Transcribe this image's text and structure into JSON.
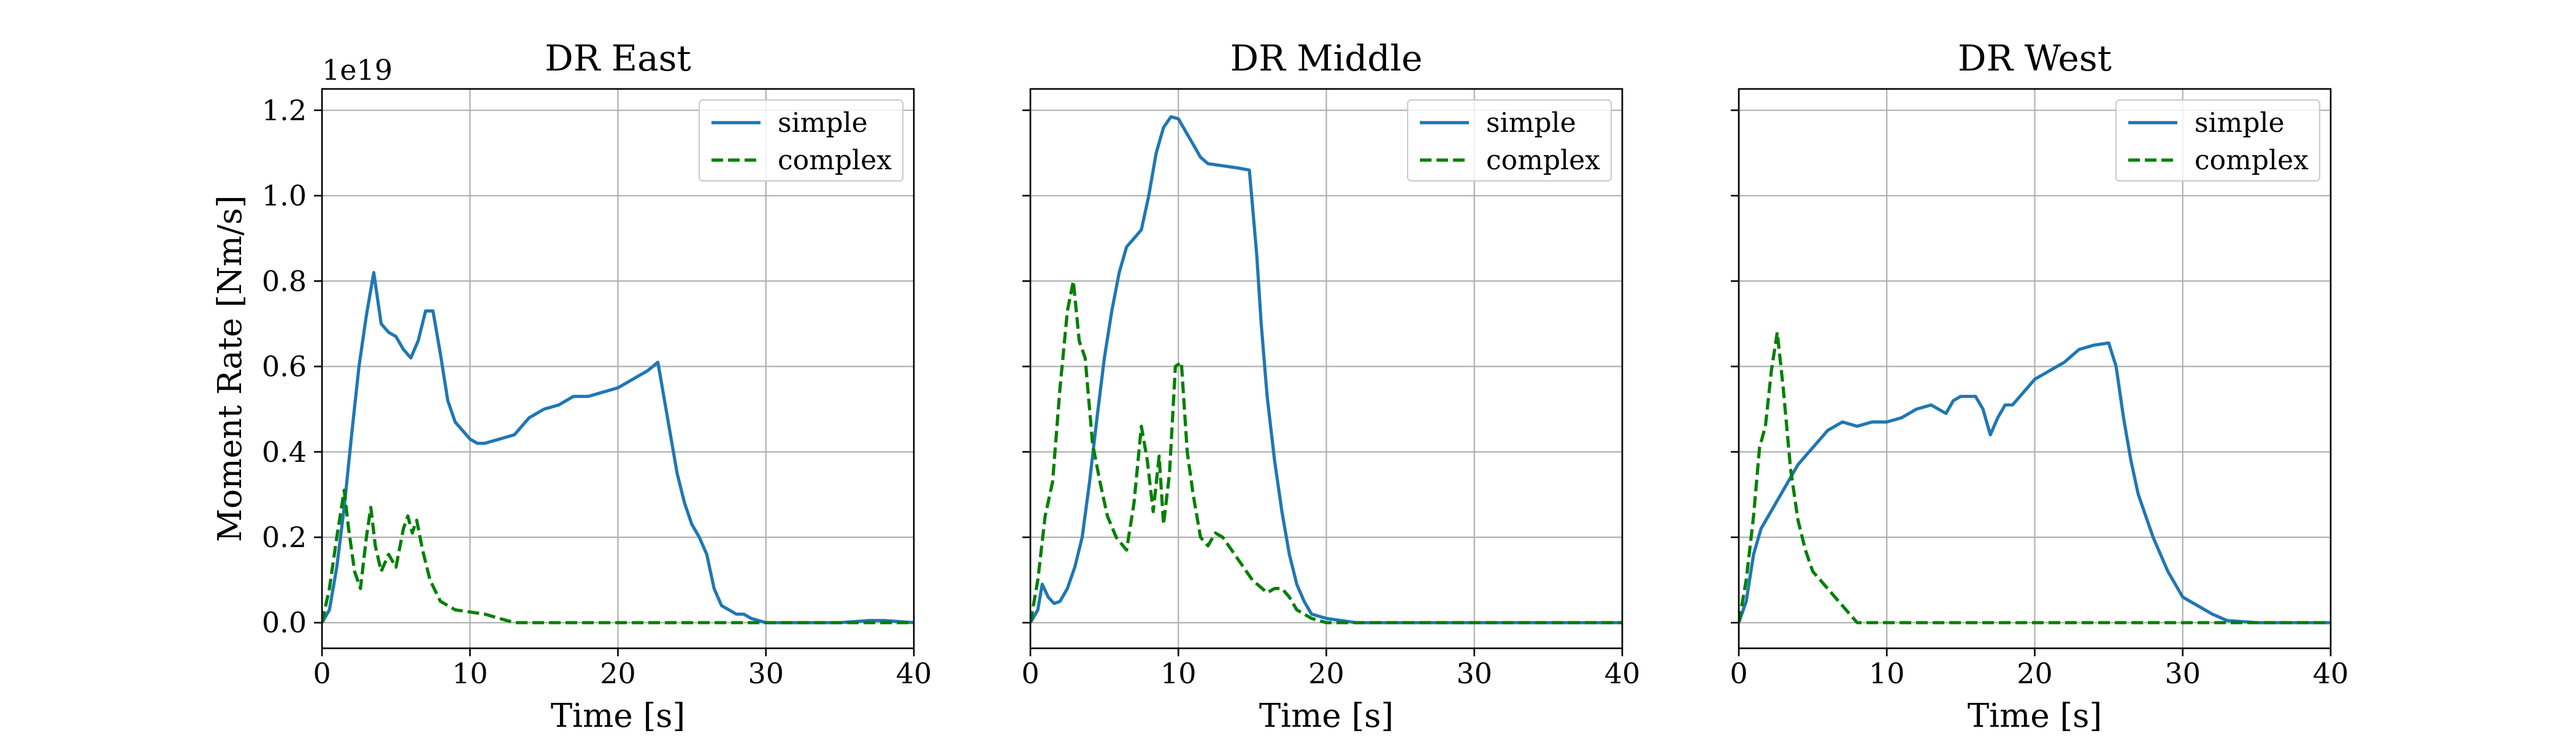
{
  "chart_data": [
    {
      "type": "line",
      "title": "DR East",
      "xlabel": "Time [s]",
      "ylabel": "Moment Rate [Nm/s]",
      "y_offset_label": "1e19",
      "xlim": [
        0,
        40
      ],
      "ylim": [
        -0.06,
        1.25
      ],
      "x_ticks": [
        0,
        10,
        20,
        30,
        40
      ],
      "y_ticks": [
        0.0,
        0.2,
        0.4,
        0.6,
        0.8,
        1.0,
        1.2
      ],
      "grid": true,
      "legend_position": "top-right",
      "series": [
        {
          "name": "simple",
          "color": "#1f77b4",
          "style": "solid",
          "x": [
            0,
            0.5,
            1,
            1.5,
            2,
            2.5,
            3,
            3.5,
            4,
            4.5,
            5,
            5.5,
            6,
            6.5,
            7,
            7.5,
            8,
            8.5,
            9,
            9.5,
            10,
            10.5,
            11,
            12,
            13,
            14,
            15,
            16,
            17,
            18,
            19,
            20,
            21,
            22,
            22.7,
            23,
            23.5,
            24,
            24.5,
            25,
            25.5,
            26,
            26.5,
            27,
            27.5,
            28,
            28.5,
            29,
            30,
            32,
            35,
            37,
            38,
            40
          ],
          "y": [
            0.0,
            0.03,
            0.13,
            0.27,
            0.44,
            0.6,
            0.72,
            0.82,
            0.7,
            0.68,
            0.67,
            0.64,
            0.62,
            0.66,
            0.73,
            0.73,
            0.63,
            0.52,
            0.47,
            0.45,
            0.43,
            0.42,
            0.42,
            0.43,
            0.44,
            0.48,
            0.5,
            0.51,
            0.53,
            0.53,
            0.54,
            0.55,
            0.57,
            0.59,
            0.61,
            0.55,
            0.45,
            0.35,
            0.28,
            0.23,
            0.2,
            0.16,
            0.08,
            0.04,
            0.03,
            0.02,
            0.02,
            0.01,
            0.0,
            0.0,
            0.0,
            0.005,
            0.005,
            0.0
          ]
        },
        {
          "name": "complex",
          "color": "#008000",
          "style": "dashed",
          "x": [
            0,
            0.5,
            1,
            1.5,
            1.8,
            2.2,
            2.6,
            3,
            3.3,
            3.6,
            4,
            4.5,
            5,
            5.5,
            5.8,
            6.1,
            6.4,
            6.8,
            7.3,
            8,
            9,
            10,
            11,
            12,
            13,
            15,
            20,
            25,
            30,
            35,
            40
          ],
          "y": [
            0.0,
            0.08,
            0.2,
            0.31,
            0.22,
            0.12,
            0.08,
            0.2,
            0.27,
            0.18,
            0.12,
            0.16,
            0.13,
            0.22,
            0.25,
            0.21,
            0.24,
            0.17,
            0.1,
            0.05,
            0.03,
            0.025,
            0.02,
            0.01,
            0.0,
            0.0,
            0.0,
            0.0,
            0.0,
            0.0,
            0.0
          ]
        }
      ]
    },
    {
      "type": "line",
      "title": "DR Middle",
      "xlabel": "Time [s]",
      "ylabel": "",
      "xlim": [
        0,
        40
      ],
      "ylim": [
        -0.06,
        1.25
      ],
      "x_ticks": [
        0,
        10,
        20,
        30,
        40
      ],
      "y_ticks": [
        0.0,
        0.2,
        0.4,
        0.6,
        0.8,
        1.0,
        1.2
      ],
      "grid": true,
      "legend_position": "top-right",
      "series": [
        {
          "name": "simple",
          "color": "#1f77b4",
          "style": "solid",
          "x": [
            0,
            0.5,
            0.8,
            1.2,
            1.6,
            2,
            2.5,
            3,
            3.5,
            4,
            4.5,
            5,
            5.5,
            6,
            6.5,
            7,
            7.5,
            8,
            8.5,
            9,
            9.5,
            10,
            10.5,
            11,
            11.5,
            12,
            13,
            14,
            14.8,
            15,
            15.3,
            15.6,
            16,
            16.5,
            17,
            17.5,
            18,
            18.5,
            19,
            20,
            22,
            25,
            30,
            35,
            40
          ],
          "y": [
            0.0,
            0.03,
            0.09,
            0.06,
            0.045,
            0.05,
            0.08,
            0.13,
            0.2,
            0.33,
            0.48,
            0.62,
            0.73,
            0.82,
            0.88,
            0.9,
            0.92,
            1.0,
            1.1,
            1.16,
            1.185,
            1.18,
            1.15,
            1.12,
            1.09,
            1.075,
            1.07,
            1.065,
            1.06,
            0.98,
            0.86,
            0.7,
            0.53,
            0.38,
            0.26,
            0.16,
            0.09,
            0.05,
            0.02,
            0.01,
            0.0,
            0.0,
            0.0,
            0.0,
            0.0
          ]
        },
        {
          "name": "complex",
          "color": "#008000",
          "style": "dashed",
          "x": [
            0,
            0.5,
            1,
            1.5,
            2,
            2.5,
            2.9,
            3.3,
            3.7,
            4.2,
            4.7,
            5.2,
            5.8,
            6.5,
            7,
            7.5,
            7.9,
            8.3,
            8.7,
            9,
            9.4,
            9.8,
            10.2,
            10.6,
            11,
            11.5,
            12,
            12.5,
            13,
            14,
            15,
            16,
            16.5,
            17,
            17.5,
            18,
            19,
            20,
            25,
            30,
            35,
            40
          ],
          "y": [
            0.0,
            0.1,
            0.25,
            0.33,
            0.55,
            0.73,
            0.8,
            0.66,
            0.62,
            0.42,
            0.33,
            0.25,
            0.2,
            0.17,
            0.28,
            0.46,
            0.38,
            0.26,
            0.39,
            0.23,
            0.35,
            0.6,
            0.61,
            0.4,
            0.3,
            0.2,
            0.18,
            0.21,
            0.2,
            0.15,
            0.1,
            0.07,
            0.08,
            0.08,
            0.06,
            0.03,
            0.01,
            0.0,
            0.0,
            0.0,
            0.0,
            0.0
          ]
        }
      ]
    },
    {
      "type": "line",
      "title": "DR West",
      "xlabel": "Time [s]",
      "ylabel": "",
      "xlim": [
        0,
        40
      ],
      "ylim": [
        -0.06,
        1.25
      ],
      "x_ticks": [
        0,
        10,
        20,
        30,
        40
      ],
      "y_ticks": [
        0.0,
        0.2,
        0.4,
        0.6,
        0.8,
        1.0,
        1.2
      ],
      "grid": true,
      "legend_position": "top-right",
      "series": [
        {
          "name": "simple",
          "color": "#1f77b4",
          "style": "solid",
          "x": [
            0,
            0.5,
            1,
            1.5,
            2,
            3,
            4,
            5,
            6,
            7,
            8,
            9,
            10,
            11,
            12,
            13,
            14,
            14.5,
            15,
            16,
            16.5,
            17,
            17.5,
            18,
            18.5,
            19,
            20,
            21,
            22,
            23,
            24,
            25,
            25.5,
            26,
            26.5,
            27,
            28,
            29,
            30,
            31,
            32,
            33,
            35,
            40
          ],
          "y": [
            0.0,
            0.05,
            0.16,
            0.22,
            0.25,
            0.31,
            0.37,
            0.41,
            0.45,
            0.47,
            0.46,
            0.47,
            0.47,
            0.48,
            0.5,
            0.51,
            0.49,
            0.52,
            0.53,
            0.53,
            0.5,
            0.44,
            0.48,
            0.51,
            0.51,
            0.53,
            0.57,
            0.59,
            0.61,
            0.64,
            0.65,
            0.655,
            0.6,
            0.48,
            0.38,
            0.3,
            0.2,
            0.12,
            0.06,
            0.04,
            0.02,
            0.005,
            0.0,
            0.0
          ],
          "note": ""
        },
        {
          "name": "complex",
          "color": "#008000",
          "style": "dashed",
          "x": [
            0,
            0.5,
            1,
            1.4,
            1.8,
            2.2,
            2.6,
            3,
            3.5,
            4,
            4.5,
            5,
            5.5,
            6,
            6.5,
            7,
            7.5,
            8,
            8.5,
            10,
            15,
            20,
            25,
            30,
            35,
            40
          ],
          "y": [
            0.0,
            0.1,
            0.25,
            0.41,
            0.46,
            0.59,
            0.68,
            0.55,
            0.36,
            0.24,
            0.17,
            0.12,
            0.1,
            0.08,
            0.06,
            0.04,
            0.02,
            0.0,
            0.0,
            0.0,
            0.0,
            0.0,
            0.0,
            0.0,
            0.0,
            0.0
          ]
        }
      ]
    }
  ]
}
